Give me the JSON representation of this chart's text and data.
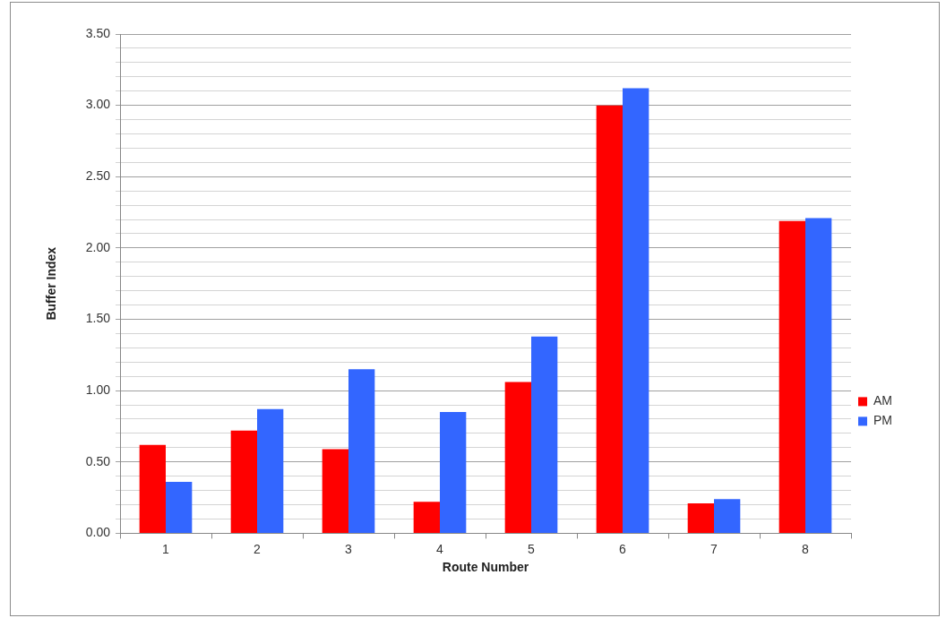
{
  "chart_data": {
    "type": "bar",
    "xlabel": "Route Number",
    "ylabel": "Buffer Index",
    "categories": [
      "1",
      "2",
      "3",
      "4",
      "5",
      "6",
      "7",
      "8"
    ],
    "series": [
      {
        "name": "AM",
        "color": "#ff0000",
        "values": [
          0.62,
          0.72,
          0.59,
          0.22,
          1.06,
          3.0,
          0.21,
          2.19
        ]
      },
      {
        "name": "PM",
        "color": "#3366ff",
        "values": [
          0.36,
          0.87,
          1.15,
          0.85,
          1.38,
          3.12,
          0.24,
          2.21
        ]
      }
    ],
    "ylim": [
      0,
      3.5
    ],
    "yticks": [
      {
        "value": 0,
        "label": "0.00"
      },
      {
        "value": 0.1,
        "label": null
      },
      {
        "value": 0.2,
        "label": null
      },
      {
        "value": 0.3,
        "label": null
      },
      {
        "value": 0.4,
        "label": null
      },
      {
        "value": 0.5,
        "label": "0.50"
      },
      {
        "value": 0.6,
        "label": null
      },
      {
        "value": 0.7,
        "label": null
      },
      {
        "value": 0.8,
        "label": null
      },
      {
        "value": 0.9,
        "label": null
      },
      {
        "value": 1,
        "label": "1.00"
      },
      {
        "value": 1.1,
        "label": null
      },
      {
        "value": 1.2,
        "label": null
      },
      {
        "value": 1.3,
        "label": null
      },
      {
        "value": 1.4,
        "label": null
      },
      {
        "value": 1.5,
        "label": "1.50"
      },
      {
        "value": 1.6,
        "label": null
      },
      {
        "value": 1.7,
        "label": null
      },
      {
        "value": 1.8,
        "label": null
      },
      {
        "value": 1.9,
        "label": null
      },
      {
        "value": 2,
        "label": "2.00"
      },
      {
        "value": 2.1,
        "label": null
      },
      {
        "value": 2.2,
        "label": null
      },
      {
        "value": 2.3,
        "label": null
      },
      {
        "value": 2.4,
        "label": null
      },
      {
        "value": 2.5,
        "label": "2.50"
      },
      {
        "value": 2.6,
        "label": null
      },
      {
        "value": 2.7,
        "label": null
      },
      {
        "value": 2.8,
        "label": null
      },
      {
        "value": 2.9,
        "label": null
      },
      {
        "value": 3,
        "label": "3.00"
      },
      {
        "value": 3.1,
        "label": null
      },
      {
        "value": 3.2,
        "label": null
      },
      {
        "value": 3.3,
        "label": null
      },
      {
        "value": 3.4,
        "label": null
      },
      {
        "value": 3.5,
        "label": "3.50"
      }
    ],
    "grid": "y",
    "legend": "right"
  }
}
